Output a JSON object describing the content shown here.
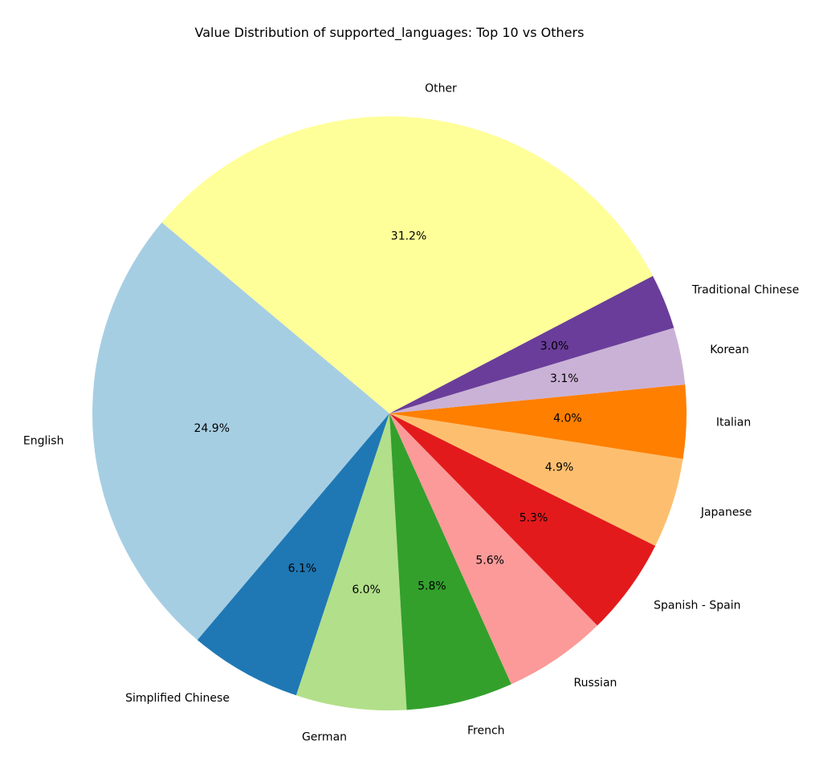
{
  "chart_data": {
    "type": "pie",
    "title": "Value Distribution of supported_languages: Top 10 vs Others",
    "start_angle_deg": 140,
    "direction": "counterclockwise",
    "legend": "none",
    "slices": [
      {
        "label": "English",
        "value": 24.9,
        "pct_label": "24.9%",
        "color": "#a6cee3"
      },
      {
        "label": "Simplified Chinese",
        "value": 6.1,
        "pct_label": "6.1%",
        "color": "#1f78b4"
      },
      {
        "label": "German",
        "value": 6.0,
        "pct_label": "6.0%",
        "color": "#b2df8a"
      },
      {
        "label": "French",
        "value": 5.8,
        "pct_label": "5.8%",
        "color": "#33a02c"
      },
      {
        "label": "Russian",
        "value": 5.6,
        "pct_label": "5.6%",
        "color": "#fb9a99"
      },
      {
        "label": "Spanish - Spain",
        "value": 5.3,
        "pct_label": "5.3%",
        "color": "#e31a1c"
      },
      {
        "label": "Japanese",
        "value": 4.9,
        "pct_label": "4.9%",
        "color": "#fdbf6f"
      },
      {
        "label": "Italian",
        "value": 4.0,
        "pct_label": "4.0%",
        "color": "#ff7f00"
      },
      {
        "label": "Korean",
        "value": 3.1,
        "pct_label": "3.1%",
        "color": "#cab2d6"
      },
      {
        "label": "Traditional Chinese",
        "value": 3.0,
        "pct_label": "3.0%",
        "color": "#6a3d9a"
      },
      {
        "label": "Other",
        "value": 31.2,
        "pct_label": "31.2%",
        "color": "#ffff99"
      }
    ]
  }
}
